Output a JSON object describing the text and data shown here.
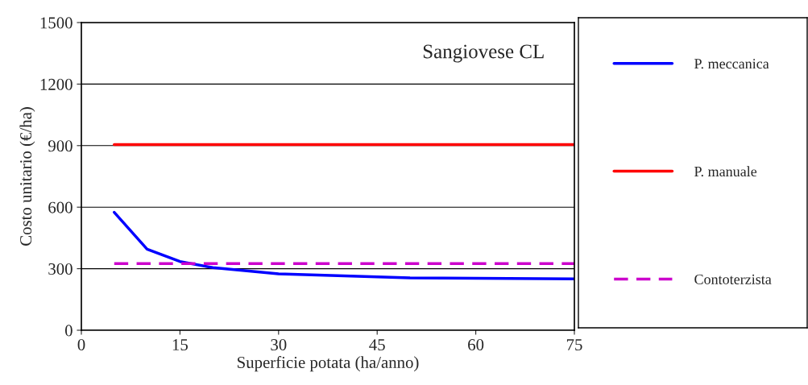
{
  "chart_data": {
    "type": "line",
    "title": "Sangiovese CL",
    "xlabel": "Superficie potata (ha/anno)",
    "ylabel": "Costo unitario (€/ha)",
    "series": [
      {
        "name": "P. meccanica",
        "color": "#0000ff",
        "x": [
          5,
          10,
          15,
          20,
          30,
          50,
          75
        ],
        "values": [
          575,
          395,
          335,
          305,
          275,
          255,
          250
        ]
      },
      {
        "name": "P. manuale",
        "color": "#ff0000",
        "x": [
          5,
          75
        ],
        "values": [
          905,
          905
        ]
      },
      {
        "name": "Contoterzista",
        "color": "#cc00cc",
        "x": [
          5,
          75
        ],
        "values": [
          325,
          325
        ],
        "line_style": "dashed"
      }
    ],
    "xlim": [
      0,
      75
    ],
    "xticks": [
      0,
      15,
      30,
      45,
      60,
      75
    ],
    "ylim": [
      0,
      1500
    ],
    "yticks": [
      0,
      300,
      600,
      900,
      1200,
      1500
    ],
    "grid": "y",
    "legend": "right",
    "marker": "none"
  }
}
